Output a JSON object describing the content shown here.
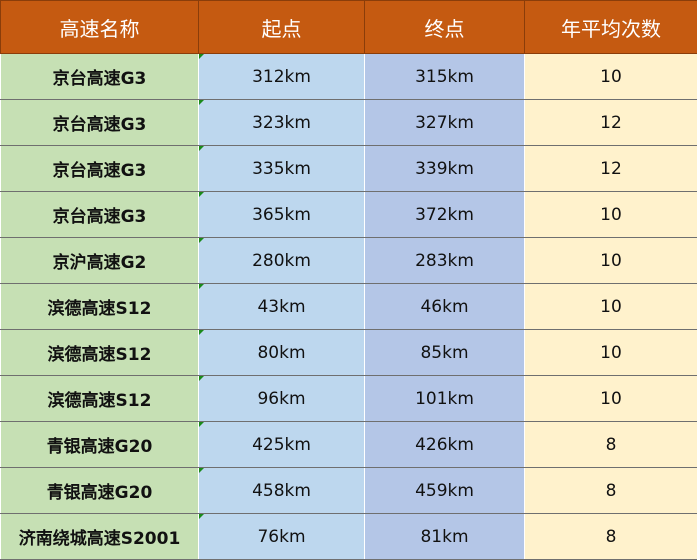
{
  "table": {
    "headers": [
      "高速名称",
      "起点",
      "终点",
      "年平均次数"
    ],
    "rows": [
      {
        "name": "京台高速G3",
        "start": "312km",
        "end": "315km",
        "freq": "10"
      },
      {
        "name": "京台高速G3",
        "start": "323km",
        "end": "327km",
        "freq": "12"
      },
      {
        "name": "京台高速G3",
        "start": "335km",
        "end": "339km",
        "freq": "12"
      },
      {
        "name": "京台高速G3",
        "start": "365km",
        "end": "372km",
        "freq": "10"
      },
      {
        "name": "京沪高速G2",
        "start": "280km",
        "end": "283km",
        "freq": "10"
      },
      {
        "name": "滨德高速S12",
        "start": "43km",
        "end": "46km",
        "freq": "10"
      },
      {
        "name": "滨德高速S12",
        "start": "80km",
        "end": "85km",
        "freq": "10"
      },
      {
        "name": "滨德高速S12",
        "start": "96km",
        "end": "101km",
        "freq": "10"
      },
      {
        "name": "青银高速G20",
        "start": "425km",
        "end": "426km",
        "freq": "8"
      },
      {
        "name": "青银高速G20",
        "start": "458km",
        "end": "459km",
        "freq": "8"
      },
      {
        "name": "济南绕城高速S2001",
        "start": "76km",
        "end": "81km",
        "freq": "8"
      }
    ]
  },
  "colors": {
    "header": "#c55a11",
    "name_col": "#c6e0b4",
    "start_col": "#bdd7ee",
    "end_col": "#b4c6e7",
    "freq_col": "#fff2cc"
  }
}
